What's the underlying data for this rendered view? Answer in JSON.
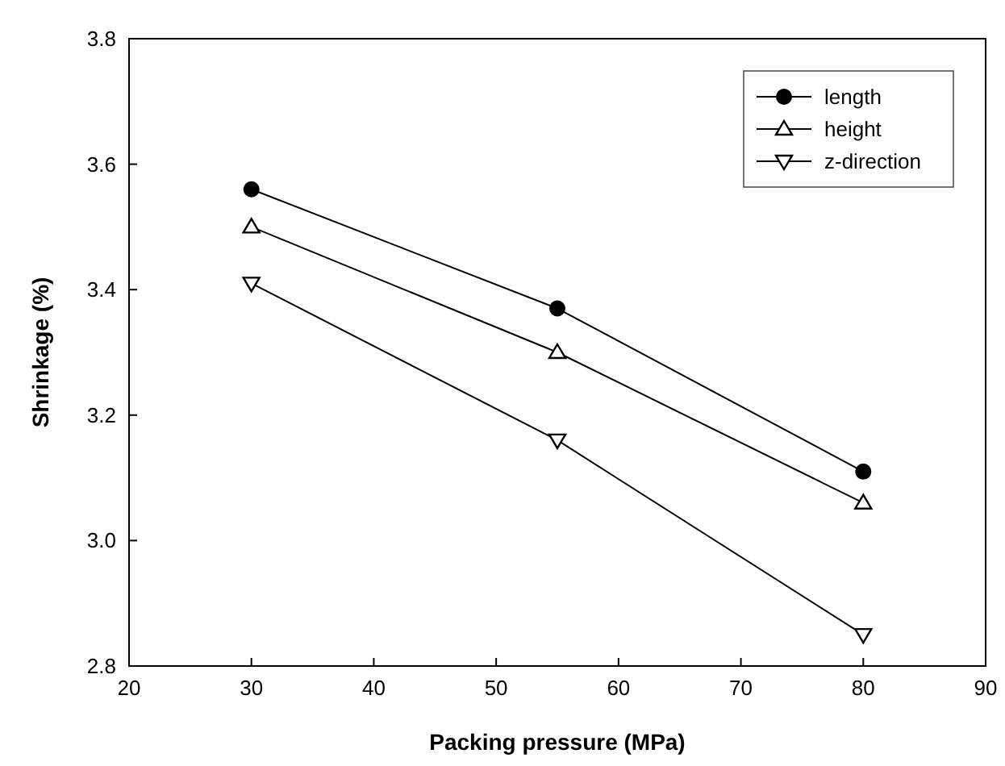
{
  "chart_data": {
    "type": "line",
    "xlabel": "Packing pressure (MPa)",
    "ylabel": "Shrinkage (%)",
    "x": [
      30,
      55,
      80
    ],
    "series": [
      {
        "name": "length",
        "color": "#000000",
        "marker": "circle",
        "values": [
          3.56,
          3.37,
          3.11
        ]
      },
      {
        "name": "height",
        "color": "#000000",
        "marker": "triangle",
        "values": [
          3.5,
          3.3,
          3.06
        ]
      },
      {
        "name": "z-direction",
        "color": "#000000",
        "marker": "triangle-down",
        "values": [
          3.41,
          3.16,
          2.85
        ]
      }
    ],
    "xlim": [
      20,
      90
    ],
    "xticks": [
      20,
      30,
      40,
      50,
      60,
      70,
      80,
      90
    ],
    "ylim": [
      2.8,
      3.8
    ],
    "yticks": [
      {
        "value": 2.8,
        "label": "2.8"
      },
      {
        "value": 3,
        "label": "3.0"
      },
      {
        "value": 3.2,
        "label": "3.2"
      },
      {
        "value": 3.4,
        "label": "3.4"
      },
      {
        "value": 3.6,
        "label": "3.6"
      },
      {
        "value": 3.8,
        "label": "3.8"
      }
    ],
    "grid": false,
    "legend": "top right",
    "line_style": "solid"
  }
}
